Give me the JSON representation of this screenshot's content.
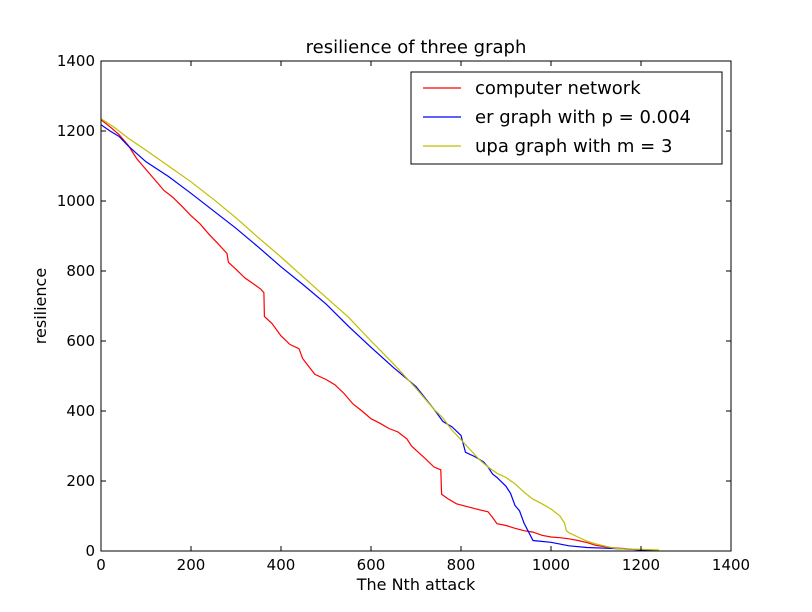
{
  "chart_data": {
    "type": "line",
    "title": "resilience of three graph",
    "xlabel": "The Nth attack",
    "ylabel": "resilience",
    "xlim": [
      0,
      1400
    ],
    "ylim": [
      0,
      1400
    ],
    "x_ticks": [
      0,
      200,
      400,
      600,
      800,
      1000,
      1200,
      1400
    ],
    "y_ticks": [
      0,
      200,
      400,
      600,
      800,
      1000,
      1200,
      1400
    ],
    "grid": false,
    "legend_position": "top-right",
    "series": [
      {
        "name": "computer network",
        "color": "#ff0000",
        "points": [
          [
            0,
            1232
          ],
          [
            20,
            1212
          ],
          [
            40,
            1190
          ],
          [
            60,
            1160
          ],
          [
            80,
            1120
          ],
          [
            100,
            1090
          ],
          [
            120,
            1060
          ],
          [
            140,
            1030
          ],
          [
            160,
            1010
          ],
          [
            180,
            985
          ],
          [
            200,
            958
          ],
          [
            220,
            935
          ],
          [
            240,
            905
          ],
          [
            260,
            878
          ],
          [
            280,
            850
          ],
          [
            283,
            825
          ],
          [
            300,
            805
          ],
          [
            320,
            780
          ],
          [
            340,
            762
          ],
          [
            355,
            748
          ],
          [
            362,
            738
          ],
          [
            363,
            670
          ],
          [
            380,
            650
          ],
          [
            400,
            615
          ],
          [
            420,
            590
          ],
          [
            440,
            578
          ],
          [
            448,
            550
          ],
          [
            460,
            530
          ],
          [
            475,
            505
          ],
          [
            500,
            490
          ],
          [
            520,
            475
          ],
          [
            540,
            450
          ],
          [
            560,
            420
          ],
          [
            580,
            400
          ],
          [
            600,
            378
          ],
          [
            620,
            365
          ],
          [
            640,
            350
          ],
          [
            660,
            340
          ],
          [
            680,
            320
          ],
          [
            690,
            300
          ],
          [
            700,
            288
          ],
          [
            720,
            265
          ],
          [
            740,
            240
          ],
          [
            755,
            232
          ],
          [
            757,
            162
          ],
          [
            770,
            150
          ],
          [
            790,
            135
          ],
          [
            810,
            128
          ],
          [
            840,
            118
          ],
          [
            860,
            112
          ],
          [
            870,
            96
          ],
          [
            880,
            78
          ],
          [
            900,
            73
          ],
          [
            920,
            65
          ],
          [
            940,
            58
          ],
          [
            960,
            54
          ],
          [
            980,
            45
          ],
          [
            1000,
            40
          ],
          [
            1020,
            38
          ],
          [
            1040,
            35
          ],
          [
            1060,
            30
          ],
          [
            1080,
            24
          ],
          [
            1100,
            16
          ],
          [
            1120,
            12
          ],
          [
            1140,
            9
          ],
          [
            1160,
            7
          ],
          [
            1180,
            5
          ],
          [
            1200,
            4
          ],
          [
            1220,
            3
          ],
          [
            1240,
            1
          ]
        ]
      },
      {
        "name": "er graph with p = 0.004",
        "color": "#0000ff",
        "points": [
          [
            0,
            1218
          ],
          [
            20,
            1200
          ],
          [
            40,
            1185
          ],
          [
            60,
            1158
          ],
          [
            80,
            1135
          ],
          [
            100,
            1112
          ],
          [
            150,
            1070
          ],
          [
            200,
            1022
          ],
          [
            250,
            972
          ],
          [
            300,
            922
          ],
          [
            350,
            868
          ],
          [
            400,
            812
          ],
          [
            450,
            760
          ],
          [
            500,
            706
          ],
          [
            550,
            642
          ],
          [
            600,
            582
          ],
          [
            650,
            524
          ],
          [
            700,
            470
          ],
          [
            740,
            405
          ],
          [
            760,
            370
          ],
          [
            780,
            355
          ],
          [
            800,
            330
          ],
          [
            810,
            282
          ],
          [
            830,
            270
          ],
          [
            850,
            255
          ],
          [
            860,
            240
          ],
          [
            870,
            220
          ],
          [
            880,
            210
          ],
          [
            900,
            185
          ],
          [
            910,
            165
          ],
          [
            920,
            130
          ],
          [
            930,
            115
          ],
          [
            940,
            80
          ],
          [
            950,
            55
          ],
          [
            960,
            30
          ],
          [
            1000,
            25
          ],
          [
            1040,
            15
          ],
          [
            1080,
            10
          ],
          [
            1120,
            8
          ],
          [
            1160,
            6
          ],
          [
            1200,
            3
          ],
          [
            1240,
            1
          ]
        ]
      },
      {
        "name": "upa graph with m = 3",
        "color": "#bfbf00",
        "points": [
          [
            0,
            1235
          ],
          [
            30,
            1210
          ],
          [
            60,
            1180
          ],
          [
            100,
            1145
          ],
          [
            150,
            1100
          ],
          [
            200,
            1055
          ],
          [
            250,
            1005
          ],
          [
            300,
            952
          ],
          [
            350,
            895
          ],
          [
            400,
            840
          ],
          [
            450,
            782
          ],
          [
            500,
            725
          ],
          [
            550,
            668
          ],
          [
            600,
            600
          ],
          [
            650,
            535
          ],
          [
            700,
            465
          ],
          [
            740,
            405
          ],
          [
            760,
            380
          ],
          [
            780,
            345
          ],
          [
            800,
            318
          ],
          [
            820,
            290
          ],
          [
            840,
            262
          ],
          [
            860,
            240
          ],
          [
            880,
            222
          ],
          [
            900,
            210
          ],
          [
            920,
            192
          ],
          [
            940,
            168
          ],
          [
            960,
            148
          ],
          [
            980,
            135
          ],
          [
            1000,
            120
          ],
          [
            1020,
            100
          ],
          [
            1030,
            80
          ],
          [
            1034,
            58
          ],
          [
            1040,
            52
          ],
          [
            1060,
            40
          ],
          [
            1080,
            28
          ],
          [
            1100,
            20
          ],
          [
            1120,
            14
          ],
          [
            1140,
            8
          ],
          [
            1160,
            6
          ],
          [
            1180,
            5
          ],
          [
            1200,
            5
          ],
          [
            1220,
            4
          ],
          [
            1240,
            3
          ]
        ]
      }
    ]
  }
}
